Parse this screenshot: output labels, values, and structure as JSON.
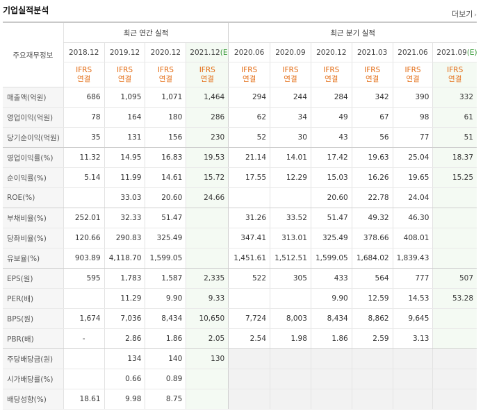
{
  "title": "기업실적분석",
  "more": "더보기",
  "rowhead": "주요재무정보",
  "groups": {
    "annual": "최근 연간 실적",
    "quarterly": "최근 분기 실적"
  },
  "periods": [
    "2018.12",
    "2019.12",
    "2020.12",
    "2021.12",
    "2020.06",
    "2020.09",
    "2020.12",
    "2021.03",
    "2021.06",
    "2021.09"
  ],
  "est_suffix": "(E)",
  "ifrs": "IFRS",
  "basis": "연결",
  "rows": [
    {
      "label": "매출액(억원)",
      "v": [
        "686",
        "1,095",
        "1,071",
        "1,464",
        "294",
        "244",
        "284",
        "342",
        "390",
        "332"
      ]
    },
    {
      "label": "영업이익(억원)",
      "v": [
        "78",
        "164",
        "180",
        "286",
        "62",
        "34",
        "49",
        "67",
        "98",
        "61"
      ]
    },
    {
      "label": "당기순이익(억원)",
      "v": [
        "35",
        "131",
        "156",
        "230",
        "52",
        "30",
        "43",
        "56",
        "77",
        "51"
      ]
    },
    {
      "label": "영업이익률(%)",
      "v": [
        "11.32",
        "14.95",
        "16.83",
        "19.53",
        "21.14",
        "14.01",
        "17.42",
        "19.63",
        "25.04",
        "18.37"
      ]
    },
    {
      "label": "순이익률(%)",
      "v": [
        "5.14",
        "11.99",
        "14.61",
        "15.72",
        "17.55",
        "12.29",
        "15.03",
        "16.26",
        "19.65",
        "15.25"
      ]
    },
    {
      "label": "ROE(%)",
      "v": [
        "",
        "33.03",
        "20.60",
        "24.66",
        "",
        "",
        "20.60",
        "22.78",
        "24.04",
        ""
      ]
    },
    {
      "label": "부채비율(%)",
      "v": [
        "252.01",
        "32.33",
        "51.47",
        "",
        "31.26",
        "33.52",
        "51.47",
        "49.32",
        "46.30",
        ""
      ]
    },
    {
      "label": "당좌비율(%)",
      "v": [
        "120.66",
        "290.83",
        "325.49",
        "",
        "347.41",
        "313.01",
        "325.49",
        "378.66",
        "408.01",
        ""
      ]
    },
    {
      "label": "유보율(%)",
      "v": [
        "903.89",
        "4,118.70",
        "1,599.05",
        "",
        "1,451.61",
        "1,512.51",
        "1,599.05",
        "1,684.02",
        "1,839.43",
        ""
      ]
    },
    {
      "label": "EPS(원)",
      "v": [
        "595",
        "1,783",
        "1,587",
        "2,335",
        "522",
        "305",
        "433",
        "564",
        "777",
        "507"
      ]
    },
    {
      "label": "PER(배)",
      "v": [
        "",
        "11.29",
        "9.90",
        "9.33",
        "",
        "",
        "9.90",
        "12.59",
        "14.53",
        "53.28"
      ]
    },
    {
      "label": "BPS(원)",
      "v": [
        "1,674",
        "7,036",
        "8,434",
        "10,650",
        "7,724",
        "8,003",
        "8,434",
        "8,862",
        "9,645",
        ""
      ]
    },
    {
      "label": "PBR(배)",
      "v": [
        "-",
        "2.86",
        "1.86",
        "2.05",
        "2.54",
        "1.98",
        "1.86",
        "2.59",
        "3.13",
        ""
      ]
    },
    {
      "label": "주당배당금(원)",
      "v": [
        "",
        "134",
        "140",
        "130",
        "",
        "",
        "",
        "",
        "",
        ""
      ]
    },
    {
      "label": "시가배당률(%)",
      "v": [
        "",
        "0.66",
        "0.89",
        "",
        "",
        "",
        "",
        "",
        "",
        ""
      ]
    },
    {
      "label": "배당성향(%)",
      "v": [
        "18.61",
        "9.98",
        "8.75",
        "",
        "",
        "",
        "",
        "",
        "",
        ""
      ]
    }
  ]
}
